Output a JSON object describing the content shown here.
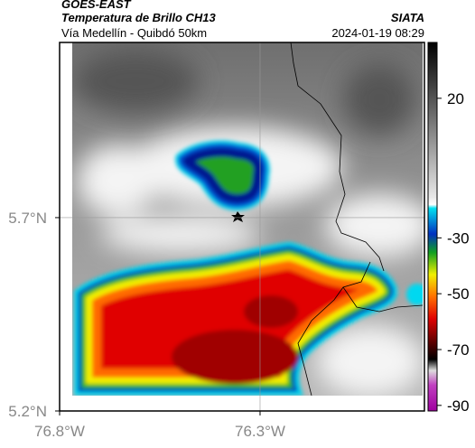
{
  "header": {
    "title": "GOES-EAST",
    "subtitle": "Temperatura de Brillo CH13",
    "source": "SIATA",
    "route": "Vía Medellín - Quibdó 50km",
    "timestamp": "2024-01-19 08:29"
  },
  "map": {
    "xlim": [
      -76.8,
      -75.89
    ],
    "ylim": [
      5.2,
      6.153
    ],
    "xticks": [
      {
        "value": -76.8,
        "label": "76.8°W"
      },
      {
        "value": -76.3,
        "label": "76.3°W"
      }
    ],
    "yticks": [
      {
        "value": 5.7,
        "label": "5.7°N"
      },
      {
        "value": 5.2,
        "label": "5.2°N"
      }
    ],
    "grid": true
  },
  "colorbar": {
    "lim": [
      -92,
      40
    ],
    "ticks": [
      20,
      -30,
      -50,
      -70,
      -90
    ]
  }
}
